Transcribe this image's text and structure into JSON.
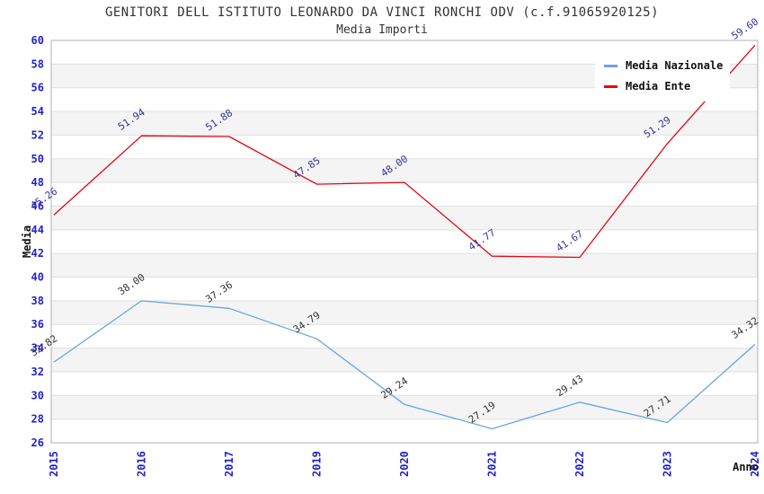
{
  "header": {
    "title": "GENITORI DELL ISTITUTO LEONARDO DA VINCI RONCHI ODV (c.f.91065920125)",
    "subtitle": "Media Importi"
  },
  "axes": {
    "y_title": "Media",
    "x_title": "Anno",
    "tick_label_color": "#2222cc",
    "grid_line_color": "#e0e0e0",
    "band_color": "#f4f4f4",
    "border_color": "#b0b0b0"
  },
  "chart_data": {
    "type": "line",
    "title": "GENITORI DELL ISTITUTO LEONARDO DA VINCI RONCHI ODV (c.f.91065920125)",
    "subtitle": "Media Importi",
    "xlabel": "Anno",
    "ylabel": "Media",
    "categories": [
      "2015",
      "2016",
      "2017",
      "2019",
      "2020",
      "2021",
      "2022",
      "2023",
      "2024"
    ],
    "series": [
      {
        "name": "Media Nazionale",
        "color": "#6ba4dc",
        "label_color": "#333333",
        "values": [
          32.82,
          38.0,
          37.36,
          34.79,
          29.24,
          27.19,
          29.43,
          27.71,
          34.32
        ],
        "labels": [
          "32.82",
          "38.00",
          "37.36",
          "34.79",
          "29.24",
          "27.19",
          "29.43",
          "27.71",
          "34.32"
        ]
      },
      {
        "name": "Media Ente",
        "color": "#e30613",
        "label_color": "#333399",
        "values": [
          45.26,
          51.94,
          51.88,
          47.85,
          48.0,
          41.77,
          41.67,
          51.29,
          59.6
        ],
        "labels": [
          "45.26",
          "51.94",
          "51.88",
          "47.85",
          "48.00",
          "41.77",
          "41.67",
          "51.29",
          "59.60"
        ]
      }
    ],
    "ylim": [
      26,
      60
    ],
    "y_tick_step": 2,
    "grid": "horizontal-only",
    "band_fill": "alternating",
    "legend_position": "top-right",
    "x_tick_rotation": -90,
    "point_label_rotation": -34
  }
}
